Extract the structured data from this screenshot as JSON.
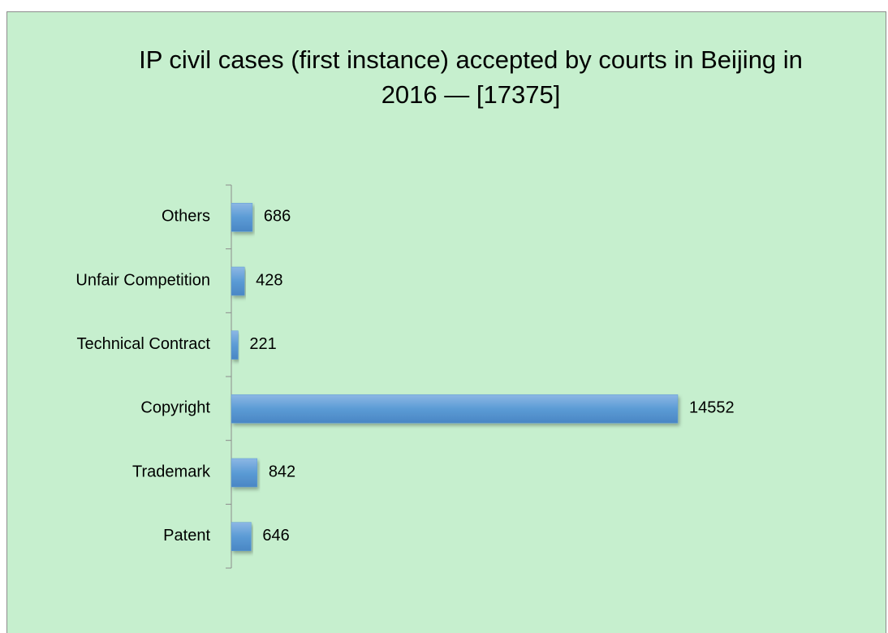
{
  "chart_data": {
    "type": "bar",
    "orientation": "horizontal",
    "title": "IP civil cases (first instance) accepted by courts in Beijing in 2016 — [17375]",
    "categories": [
      "Patent",
      "Trademark",
      "Copyright",
      "Technical Contract",
      "Unfair Competition",
      "Others"
    ],
    "values": [
      646,
      842,
      14552,
      221,
      428,
      686
    ],
    "color": "#5b9bd5"
  }
}
